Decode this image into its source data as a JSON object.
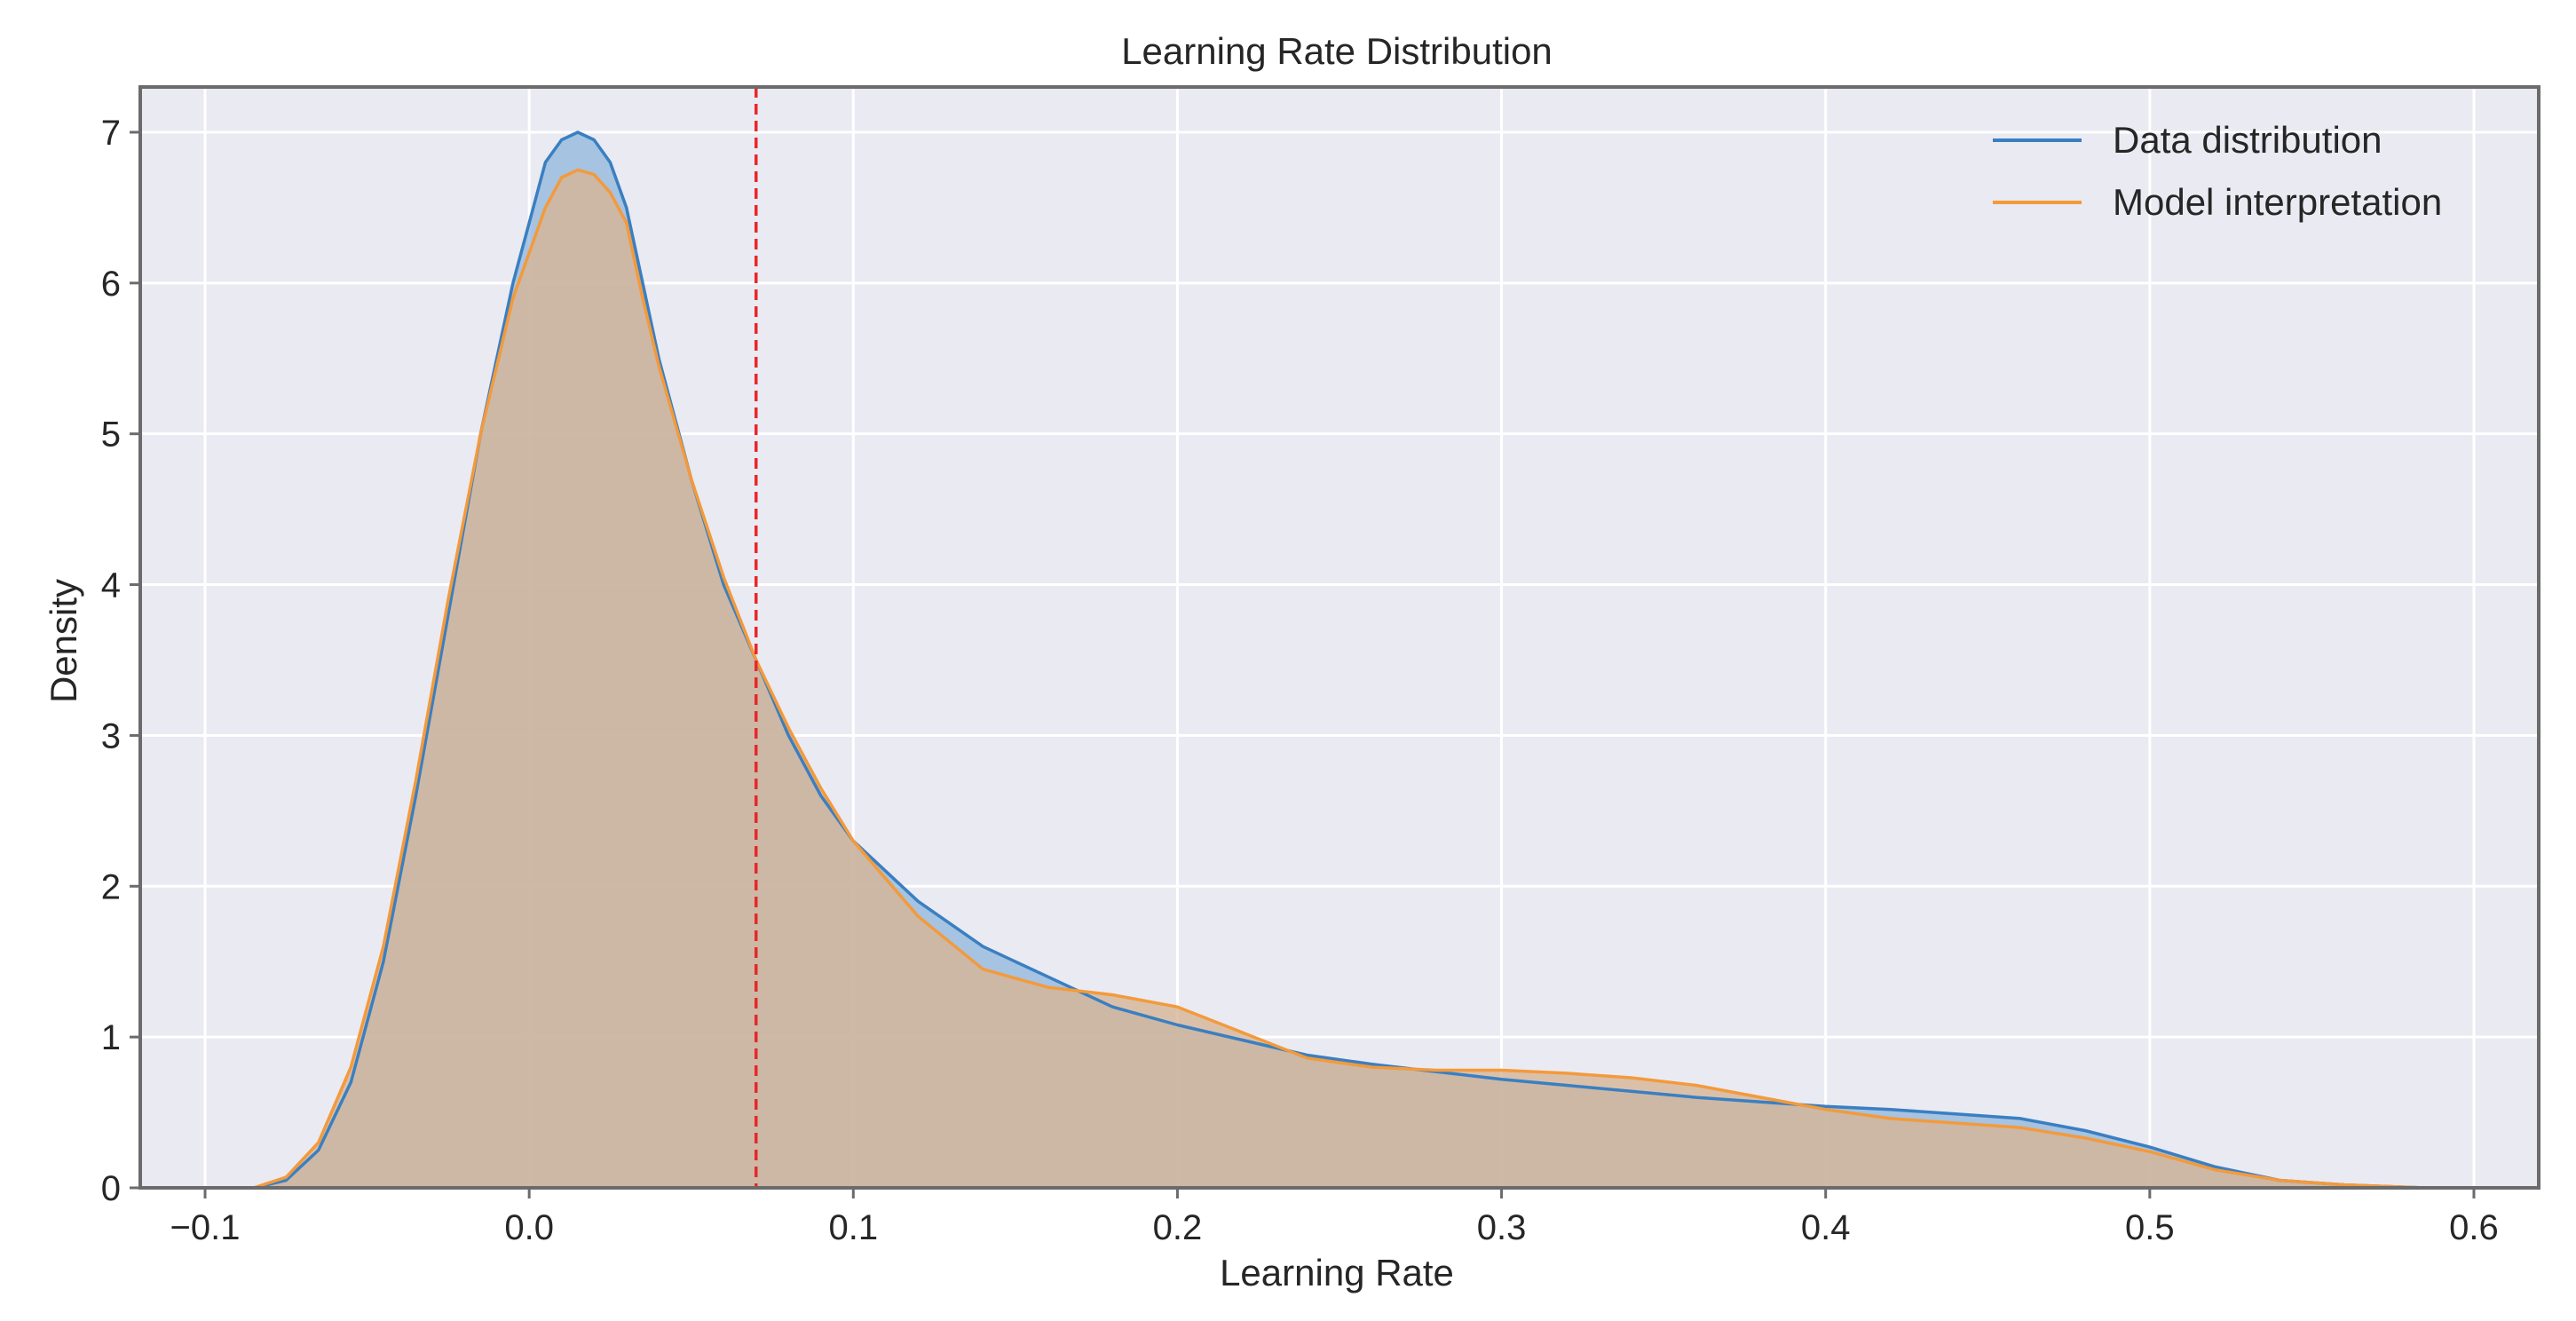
{
  "chart_data": {
    "type": "area",
    "title": "Learning Rate Distribution",
    "xlabel": "Learning Rate",
    "ylabel": "Density",
    "xlim": [
      -0.12,
      0.62
    ],
    "ylim": [
      0,
      7.3
    ],
    "xticks": [
      -0.1,
      0.0,
      0.1,
      0.2,
      0.3,
      0.4,
      0.5,
      0.6
    ],
    "xtick_labels": [
      "−0.1",
      "0.0",
      "0.1",
      "0.2",
      "0.3",
      "0.4",
      "0.5",
      "0.6"
    ],
    "yticks": [
      0,
      1,
      2,
      3,
      4,
      5,
      6,
      7
    ],
    "ytick_labels": [
      "0",
      "1",
      "2",
      "3",
      "4",
      "5",
      "6",
      "7"
    ],
    "grid": true,
    "legend_position": "top-right",
    "reference_line": {
      "x": 0.07,
      "color": "#e8272a",
      "style": "dashed"
    },
    "series": [
      {
        "name": "Data distribution",
        "color": "#3a7fc1",
        "fill": "#8fb6dc",
        "x": [
          -0.085,
          -0.075,
          -0.065,
          -0.055,
          -0.045,
          -0.035,
          -0.025,
          -0.015,
          -0.005,
          0.0,
          0.005,
          0.01,
          0.015,
          0.02,
          0.025,
          0.03,
          0.035,
          0.04,
          0.05,
          0.06,
          0.07,
          0.08,
          0.09,
          0.1,
          0.12,
          0.14,
          0.16,
          0.18,
          0.2,
          0.22,
          0.24,
          0.26,
          0.28,
          0.3,
          0.32,
          0.34,
          0.36,
          0.38,
          0.4,
          0.42,
          0.44,
          0.46,
          0.48,
          0.5,
          0.52,
          0.54,
          0.56,
          0.585
        ],
        "values": [
          0.0,
          0.05,
          0.25,
          0.7,
          1.5,
          2.6,
          3.8,
          5.0,
          6.0,
          6.4,
          6.8,
          6.95,
          7.0,
          6.95,
          6.8,
          6.5,
          6.0,
          5.5,
          4.7,
          4.0,
          3.5,
          3.0,
          2.6,
          2.3,
          1.9,
          1.6,
          1.4,
          1.2,
          1.08,
          0.98,
          0.88,
          0.82,
          0.77,
          0.72,
          0.68,
          0.64,
          0.6,
          0.57,
          0.54,
          0.52,
          0.49,
          0.46,
          0.38,
          0.27,
          0.14,
          0.05,
          0.02,
          0.0
        ]
      },
      {
        "name": "Model interpretation",
        "color": "#f39a3c",
        "fill": "#d7b596",
        "x": [
          -0.085,
          -0.075,
          -0.065,
          -0.055,
          -0.045,
          -0.035,
          -0.025,
          -0.015,
          -0.005,
          0.0,
          0.005,
          0.01,
          0.015,
          0.02,
          0.025,
          0.03,
          0.035,
          0.04,
          0.05,
          0.06,
          0.07,
          0.08,
          0.09,
          0.1,
          0.12,
          0.14,
          0.16,
          0.18,
          0.2,
          0.22,
          0.24,
          0.26,
          0.28,
          0.3,
          0.32,
          0.34,
          0.36,
          0.38,
          0.4,
          0.42,
          0.44,
          0.46,
          0.48,
          0.5,
          0.52,
          0.54,
          0.56,
          0.585
        ],
        "values": [
          0.0,
          0.07,
          0.3,
          0.8,
          1.6,
          2.7,
          3.9,
          5.0,
          5.9,
          6.2,
          6.5,
          6.7,
          6.75,
          6.72,
          6.6,
          6.4,
          5.9,
          5.45,
          4.7,
          4.05,
          3.5,
          3.05,
          2.65,
          2.3,
          1.8,
          1.45,
          1.33,
          1.28,
          1.2,
          1.03,
          0.86,
          0.8,
          0.78,
          0.78,
          0.76,
          0.73,
          0.68,
          0.6,
          0.52,
          0.46,
          0.43,
          0.4,
          0.33,
          0.24,
          0.12,
          0.05,
          0.02,
          0.0
        ]
      }
    ]
  }
}
